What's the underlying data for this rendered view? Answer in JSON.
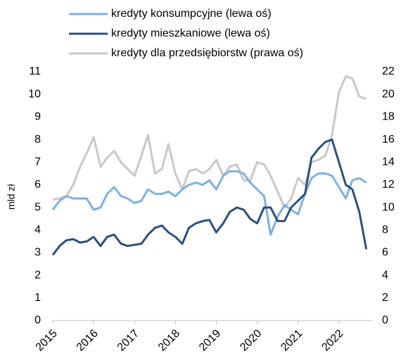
{
  "chart_data": {
    "type": "line",
    "y_label": "mld zł",
    "x": [
      2015,
      2015.17,
      2015.33,
      2015.5,
      2015.67,
      2015.83,
      2016,
      2016.17,
      2016.33,
      2016.5,
      2016.67,
      2016.83,
      2017,
      2017.17,
      2017.33,
      2017.5,
      2017.67,
      2017.83,
      2018,
      2018.17,
      2018.33,
      2018.5,
      2018.67,
      2018.83,
      2019,
      2019.17,
      2019.33,
      2019.5,
      2019.67,
      2019.83,
      2020,
      2020.17,
      2020.33,
      2020.5,
      2020.67,
      2020.83,
      2021,
      2021.17,
      2021.33,
      2021.5,
      2021.67,
      2021.83,
      2022,
      2022.17,
      2022.33,
      2022.5,
      2022.67
    ],
    "series": [
      {
        "name": "kredyty konsumpcyjne (lewa oś)",
        "color": "#7cb1e2",
        "values": [
          4.9,
          5.3,
          5.5,
          5.4,
          5.4,
          5.4,
          4.9,
          5.0,
          5.6,
          5.9,
          5.5,
          5.4,
          5.2,
          5.3,
          5.8,
          5.6,
          5.6,
          5.7,
          5.5,
          5.8,
          6.0,
          6.1,
          6.0,
          6.2,
          5.8,
          6.4,
          6.6,
          6.6,
          6.5,
          6.1,
          5.8,
          5.5,
          3.8,
          4.6,
          5.1,
          4.9,
          4.7,
          5.6,
          6.3,
          6.5,
          6.5,
          6.4,
          5.9,
          5.4,
          6.2,
          6.3,
          6.1
        ]
      },
      {
        "name": "kredyty mieszkaniowe (lewa oś)",
        "color": "#2b4f7e",
        "values": [
          2.9,
          3.3,
          3.55,
          3.6,
          3.45,
          3.5,
          3.7,
          3.3,
          3.7,
          3.8,
          3.4,
          3.3,
          3.35,
          3.4,
          3.8,
          4.1,
          4.2,
          3.9,
          3.7,
          3.4,
          4.1,
          4.3,
          4.4,
          4.45,
          3.9,
          4.3,
          4.8,
          5.0,
          4.9,
          4.5,
          4.3,
          5.0,
          5.0,
          4.4,
          4.4,
          5.0,
          5.3,
          5.6,
          7.2,
          7.6,
          7.9,
          8.0,
          7.0,
          6.0,
          5.8,
          4.8,
          3.15
        ]
      },
      {
        "name": "kredyty dla przedsiębiorstw (prawa oś)",
        "color": "#c8c8c8",
        "axis": "y2",
        "values": [
          10.7,
          10.8,
          11.0,
          12.0,
          13.6,
          14.8,
          16.2,
          13.6,
          14.4,
          15.0,
          14.0,
          13.4,
          12.8,
          14.6,
          16.4,
          13.0,
          13.4,
          15.6,
          13.0,
          11.6,
          13.2,
          13.4,
          13.0,
          13.4,
          14.2,
          12.8,
          13.6,
          13.8,
          12.4,
          12.4,
          14.0,
          13.8,
          12.8,
          11.4,
          10.0,
          10.8,
          12.6,
          12.0,
          14.0,
          14.2,
          14.6,
          16.4,
          20.2,
          21.6,
          21.4,
          19.8,
          19.6
        ]
      }
    ],
    "xlim": [
      2015,
      2022.83
    ],
    "xticks": [
      2015,
      2016,
      2017,
      2018,
      2019,
      2020,
      2021,
      2022
    ],
    "ylim": [
      0,
      11
    ],
    "yticks": [
      0,
      1,
      2,
      3,
      4,
      5,
      6,
      7,
      8,
      9,
      10,
      11
    ],
    "y2lim": [
      0,
      22
    ],
    "y2ticks": [
      0,
      2,
      4,
      6,
      8,
      10,
      12,
      14,
      16,
      18,
      20,
      22
    ],
    "legend": "top"
  }
}
